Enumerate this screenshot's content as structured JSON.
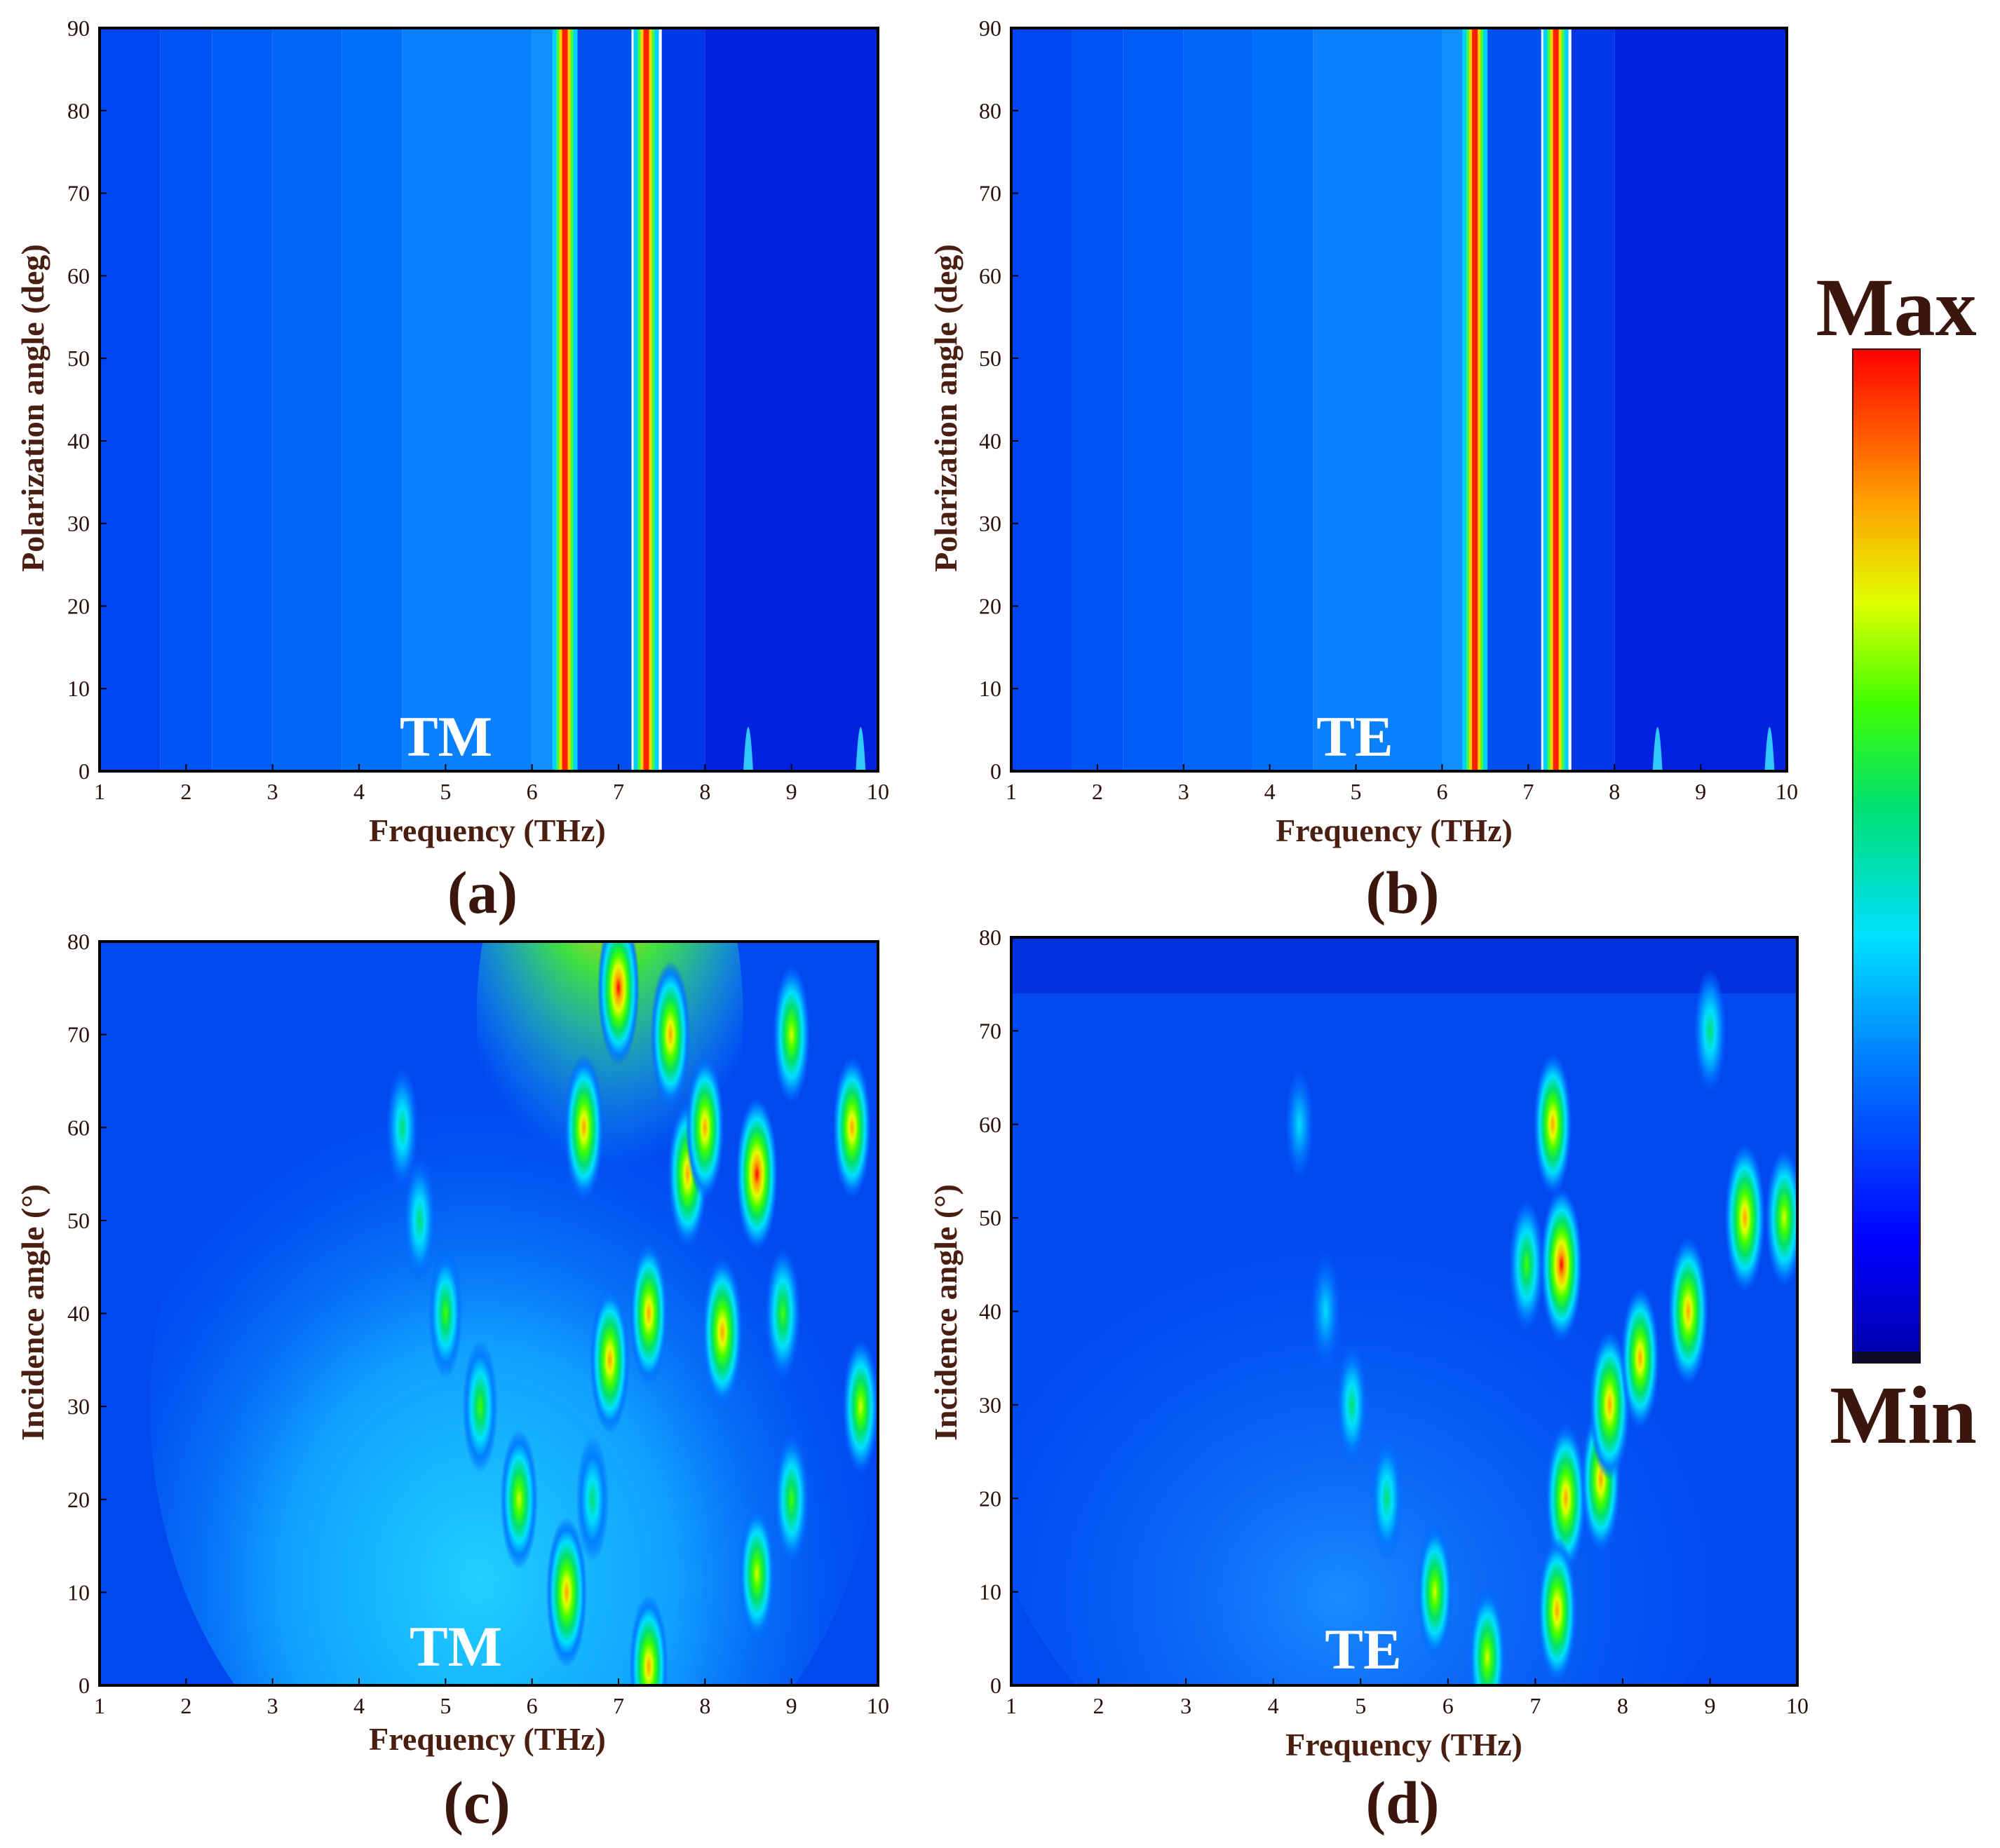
{
  "colorbar": {
    "max_label": "Max",
    "min_label": "Min"
  },
  "chart_data": [
    {
      "id": "a",
      "type": "heatmap",
      "panel_label": "(a)",
      "mode_label": "TM",
      "xlabel": "Frequency (THz)",
      "ylabel": "Polarization angle (deg)",
      "xlim": [
        1,
        10
      ],
      "ylim": [
        0,
        90
      ],
      "xticks": [
        1,
        2,
        3,
        4,
        5,
        6,
        7,
        8,
        9,
        10
      ],
      "yticks": [
        0,
        10,
        20,
        30,
        40,
        50,
        60,
        70,
        80,
        90
      ],
      "resonance_lines_THz": [
        6.38,
        7.32
      ],
      "weak_spots": [
        {
          "x": 8.5,
          "y_max": 9
        },
        {
          "x": 9.8,
          "y_max": 9
        }
      ]
    },
    {
      "id": "b",
      "type": "heatmap",
      "panel_label": "(b)",
      "mode_label": "TE",
      "xlabel": "Frequency (THz)",
      "ylabel": "Polarization angle (deg)",
      "xlim": [
        1,
        10
      ],
      "ylim": [
        0,
        90
      ],
      "xticks": [
        1,
        2,
        3,
        4,
        5,
        6,
        7,
        8,
        9,
        10
      ],
      "yticks": [
        0,
        10,
        20,
        30,
        40,
        50,
        60,
        70,
        80,
        90
      ],
      "resonance_lines_THz": [
        6.38,
        7.32
      ],
      "weak_spots": [
        {
          "x": 8.5,
          "y_max": 9
        },
        {
          "x": 9.8,
          "y_max": 9
        }
      ]
    },
    {
      "id": "c",
      "type": "heatmap",
      "panel_label": "(c)",
      "mode_label": "TM",
      "xlabel": "Frequency (THz)",
      "ylabel": "Incidence angle (°)",
      "xlim": [
        1,
        10
      ],
      "ylim": [
        0,
        80
      ],
      "xticks": [
        1,
        2,
        3,
        4,
        5,
        6,
        7,
        8,
        9,
        10
      ],
      "yticks": [
        0,
        10,
        20,
        30,
        40,
        50,
        60,
        70,
        80
      ],
      "hotspots": [
        {
          "x": 4.5,
          "y": 60,
          "level": 0.55
        },
        {
          "x": 4.7,
          "y": 50,
          "level": 0.6
        },
        {
          "x": 5.0,
          "y": 40,
          "level": 0.65
        },
        {
          "x": 5.4,
          "y": 30,
          "level": 0.7
        },
        {
          "x": 5.85,
          "y": 20,
          "level": 0.8
        },
        {
          "x": 6.4,
          "y": 10,
          "level": 0.95
        },
        {
          "x": 6.6,
          "y": 60,
          "level": 0.9
        },
        {
          "x": 6.7,
          "y": 20,
          "level": 0.6
        },
        {
          "x": 6.9,
          "y": 35,
          "level": 0.9
        },
        {
          "x": 7.0,
          "y": 75,
          "level": 1.0
        },
        {
          "x": 7.35,
          "y": 40,
          "level": 0.85
        },
        {
          "x": 7.35,
          "y": 2,
          "level": 0.85
        },
        {
          "x": 7.6,
          "y": 70,
          "level": 0.9
        },
        {
          "x": 7.8,
          "y": 55,
          "level": 0.9
        },
        {
          "x": 8.0,
          "y": 60,
          "level": 0.85
        },
        {
          "x": 8.2,
          "y": 38,
          "level": 0.95
        },
        {
          "x": 8.6,
          "y": 55,
          "level": 1.0
        },
        {
          "x": 8.6,
          "y": 12,
          "level": 0.75
        },
        {
          "x": 8.9,
          "y": 40,
          "level": 0.7
        },
        {
          "x": 9.0,
          "y": 70,
          "level": 0.8
        },
        {
          "x": 9.0,
          "y": 20,
          "level": 0.7
        },
        {
          "x": 9.7,
          "y": 60,
          "level": 0.85
        },
        {
          "x": 9.8,
          "y": 30,
          "level": 0.75
        }
      ]
    },
    {
      "id": "d",
      "type": "heatmap",
      "panel_label": "(d)",
      "mode_label": "TE",
      "xlabel": "Frequency (THz)",
      "ylabel": "Incidence angle (°)",
      "xlim": [
        1,
        10
      ],
      "ylim": [
        0,
        80
      ],
      "xticks": [
        1,
        2,
        3,
        4,
        5,
        6,
        7,
        8,
        9,
        10
      ],
      "yticks": [
        0,
        10,
        20,
        30,
        40,
        50,
        60,
        70,
        80
      ],
      "hotspots": [
        {
          "x": 4.3,
          "y": 60,
          "level": 0.45
        },
        {
          "x": 4.6,
          "y": 40,
          "level": 0.5
        },
        {
          "x": 4.9,
          "y": 30,
          "level": 0.55
        },
        {
          "x": 5.3,
          "y": 20,
          "level": 0.6
        },
        {
          "x": 5.85,
          "y": 10,
          "level": 0.75
        },
        {
          "x": 6.45,
          "y": 3,
          "level": 0.8
        },
        {
          "x": 6.9,
          "y": 45,
          "level": 0.7
        },
        {
          "x": 7.2,
          "y": 60,
          "level": 0.85
        },
        {
          "x": 7.3,
          "y": 45,
          "level": 1.0
        },
        {
          "x": 7.35,
          "y": 20,
          "level": 0.95
        },
        {
          "x": 7.25,
          "y": 8,
          "level": 0.9
        },
        {
          "x": 7.75,
          "y": 22,
          "level": 0.9
        },
        {
          "x": 7.85,
          "y": 30,
          "level": 0.95
        },
        {
          "x": 8.2,
          "y": 35,
          "level": 0.85
        },
        {
          "x": 8.75,
          "y": 40,
          "level": 0.95
        },
        {
          "x": 9.4,
          "y": 50,
          "level": 0.95
        },
        {
          "x": 9.0,
          "y": 70,
          "level": 0.6
        },
        {
          "x": 9.85,
          "y": 50,
          "level": 0.8
        }
      ]
    }
  ]
}
